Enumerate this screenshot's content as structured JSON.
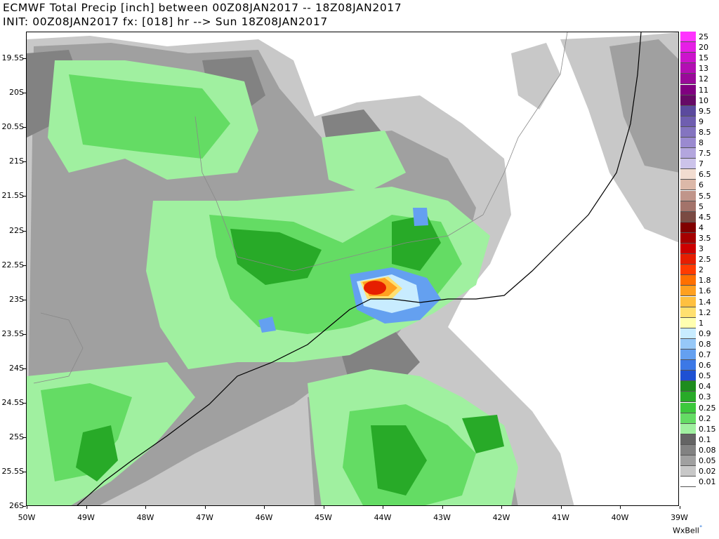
{
  "title": {
    "line1": "ECMWF Total Precip [inch] between 00Z08JAN2017 -- 18Z08JAN2017",
    "line2": "INIT: 00Z08JAN2017 fx: [018] hr --> Sun 18Z08JAN2017"
  },
  "map": {
    "lat_labels": [
      "19.5S",
      "20S",
      "20.5S",
      "21S",
      "21.5S",
      "22S",
      "22.5S",
      "23S",
      "23.5S",
      "24S",
      "24.5S",
      "25S",
      "25.5S",
      "26S"
    ],
    "lon_labels": [
      "50W",
      "49W",
      "48W",
      "47W",
      "46W",
      "45W",
      "44W",
      "43W",
      "42W",
      "41W",
      "40W",
      "39W"
    ],
    "max_precip_location": "Near 44.1W 22.8S",
    "colors": {
      "ocean": "#ffffff",
      "land_no_precip": "#ffffff",
      "coastline": "#000000",
      "borders": "#888888"
    }
  },
  "legend": {
    "items": [
      {
        "label": "25",
        "color": "#ff33ff"
      },
      {
        "label": "20",
        "color": "#e61ee6"
      },
      {
        "label": "15",
        "color": "#cc14cc"
      },
      {
        "label": "13",
        "color": "#b30fb3"
      },
      {
        "label": "12",
        "color": "#990a99"
      },
      {
        "label": "11",
        "color": "#800080"
      },
      {
        "label": "10",
        "color": "#660a66"
      },
      {
        "label": "9.5",
        "color": "#5b4a9e"
      },
      {
        "label": "9",
        "color": "#6f5eb0"
      },
      {
        "label": "8.5",
        "color": "#8474c0"
      },
      {
        "label": "8",
        "color": "#9a8ad0"
      },
      {
        "label": "7.5",
        "color": "#b3a6de"
      },
      {
        "label": "7",
        "color": "#ccc3ea"
      },
      {
        "label": "6.5",
        "color": "#f2dcd0"
      },
      {
        "label": "6",
        "color": "#dcb8a8"
      },
      {
        "label": "5.5",
        "color": "#c0958a"
      },
      {
        "label": "5",
        "color": "#a3736a"
      },
      {
        "label": "4.5",
        "color": "#7a4a42"
      },
      {
        "label": "4",
        "color": "#800000"
      },
      {
        "label": "3.5",
        "color": "#a50000"
      },
      {
        "label": "3",
        "color": "#cc0000"
      },
      {
        "label": "2.5",
        "color": "#e61e00"
      },
      {
        "label": "2",
        "color": "#ff3c00"
      },
      {
        "label": "1.8",
        "color": "#ff7000"
      },
      {
        "label": "1.6",
        "color": "#ffa020"
      },
      {
        "label": "1.4",
        "color": "#ffc040"
      },
      {
        "label": "1.2",
        "color": "#ffe070"
      },
      {
        "label": "1",
        "color": "#ffffb0"
      },
      {
        "label": "0.9",
        "color": "#c8ecff"
      },
      {
        "label": "0.8",
        "color": "#96c8f8"
      },
      {
        "label": "0.7",
        "color": "#64a0f0"
      },
      {
        "label": "0.6",
        "color": "#3c78e6"
      },
      {
        "label": "0.5",
        "color": "#1e50d2"
      },
      {
        "label": "0.4",
        "color": "#1e8c1e"
      },
      {
        "label": "0.3",
        "color": "#28aa28"
      },
      {
        "label": "0.25",
        "color": "#3cc83c"
      },
      {
        "label": "0.2",
        "color": "#64dc64"
      },
      {
        "label": "0.15",
        "color": "#a0f0a0"
      },
      {
        "label": "0.1",
        "color": "#646464"
      },
      {
        "label": "0.08",
        "color": "#828282"
      },
      {
        "label": "0.05",
        "color": "#a0a0a0"
      },
      {
        "label": "0.02",
        "color": "#c8c8c8"
      },
      {
        "label": "0.01",
        "color": "#ffffff"
      }
    ]
  },
  "branding": {
    "text": "WxBell"
  }
}
